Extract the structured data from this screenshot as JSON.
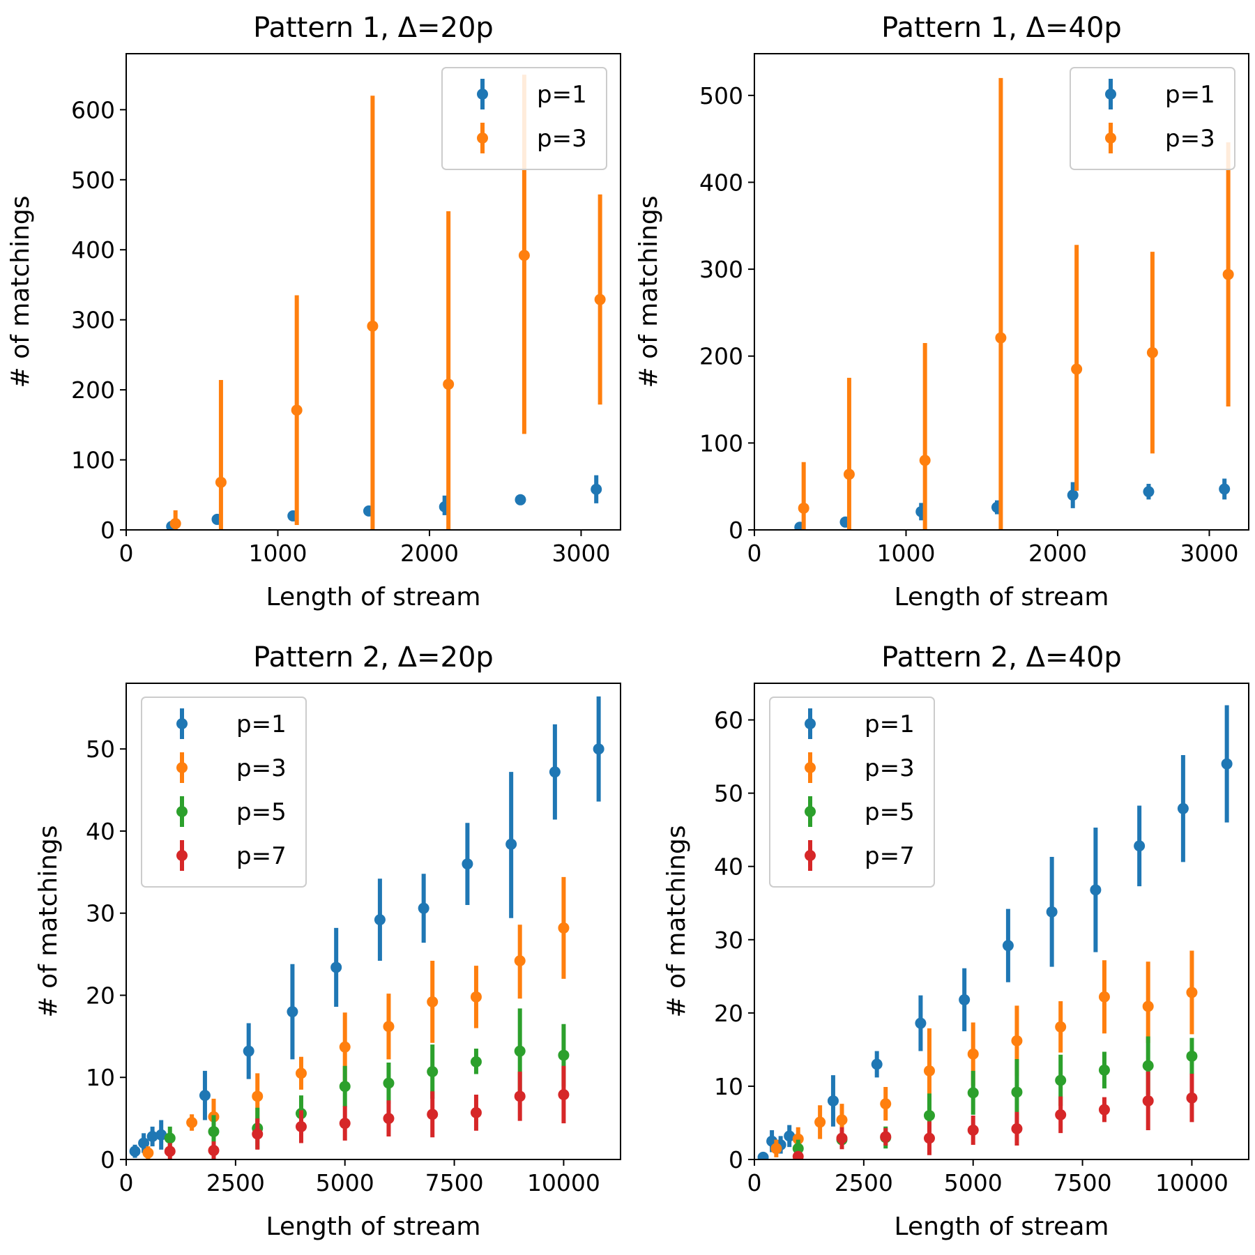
{
  "chart_data": [
    {
      "type": "scatter",
      "title": "Pattern 1, Δ=20p",
      "xlabel": "Length of stream",
      "ylabel": "# of matchings",
      "xlim": [
        0,
        3260
      ],
      "ylim": [
        0,
        680
      ],
      "xticks": [
        0,
        1000,
        2000,
        3000
      ],
      "xtick_labels": [
        "0",
        "1000",
        "2000",
        "3000"
      ],
      "yticks": [
        0,
        100,
        200,
        300,
        400,
        500,
        600
      ],
      "ytick_labels": [
        "0",
        "100",
        "200",
        "300",
        "400",
        "500",
        "600"
      ],
      "legend_position": "upper right",
      "series": [
        {
          "name": "p=1",
          "color": "#1f77b4",
          "x": [
            300,
            600,
            1100,
            1600,
            2100,
            2600,
            3100
          ],
          "y": [
            5,
            15,
            20,
            27,
            33,
            43,
            58
          ],
          "err_low": [
            0,
            6,
            6,
            5,
            12,
            5,
            20
          ],
          "err_high": [
            0,
            6,
            6,
            5,
            16,
            5,
            20
          ]
        },
        {
          "name": "p=3",
          "color": "#ff7f0e",
          "x": [
            325,
            625,
            1125,
            1625,
            2125,
            2625,
            3125
          ],
          "y": [
            9,
            68,
            171,
            291,
            208,
            392,
            329
          ],
          "err_low": [
            9,
            68,
            164,
            291,
            208,
            255,
            150
          ],
          "err_high": [
            19,
            146,
            164,
            329,
            247,
            258,
            150
          ]
        }
      ]
    },
    {
      "type": "scatter",
      "title": "Pattern 1, Δ=40p",
      "xlabel": "Length of stream",
      "ylabel": "# of matchings",
      "xlim": [
        0,
        3260
      ],
      "ylim": [
        0,
        548
      ],
      "xticks": [
        0,
        1000,
        2000,
        3000
      ],
      "xtick_labels": [
        "0",
        "1000",
        "2000",
        "3000"
      ],
      "yticks": [
        0,
        100,
        200,
        300,
        400,
        500
      ],
      "ytick_labels": [
        "0",
        "100",
        "200",
        "300",
        "400",
        "500"
      ],
      "legend_position": "upper right",
      "series": [
        {
          "name": "p=1",
          "color": "#1f77b4",
          "x": [
            300,
            600,
            1100,
            1600,
            2100,
            2600,
            3100
          ],
          "y": [
            3,
            9,
            21,
            26,
            40,
            44,
            47
          ],
          "err_low": [
            0,
            5,
            10,
            8,
            15,
            9,
            12
          ],
          "err_high": [
            0,
            5,
            10,
            8,
            15,
            9,
            12
          ]
        },
        {
          "name": "p=3",
          "color": "#ff7f0e",
          "x": [
            325,
            625,
            1125,
            1625,
            2125,
            2625,
            3125
          ],
          "y": [
            25,
            64,
            80,
            221,
            185,
            204,
            294
          ],
          "err_low": [
            25,
            64,
            80,
            221,
            140,
            116,
            152
          ],
          "err_high": [
            53,
            111,
            135,
            299,
            143,
            116,
            152
          ]
        }
      ]
    },
    {
      "type": "scatter",
      "title": "Pattern 2, Δ=20p",
      "xlabel": "Length of stream",
      "ylabel": "# of matchings",
      "xlim": [
        0,
        11300
      ],
      "ylim": [
        0,
        58
      ],
      "xticks": [
        0,
        2500,
        5000,
        7500,
        10000
      ],
      "xtick_labels": [
        "0",
        "2500",
        "5000",
        "7500",
        "10000"
      ],
      "yticks": [
        0,
        10,
        20,
        30,
        40,
        50
      ],
      "ytick_labels": [
        "0",
        "10",
        "20",
        "30",
        "40",
        "50"
      ],
      "legend_position": "upper left",
      "series": [
        {
          "name": "p=1",
          "color": "#1f77b4",
          "x": [
            200,
            400,
            600,
            800,
            1800,
            2800,
            3800,
            4800,
            5800,
            6800,
            7800,
            8800,
            9800,
            10800
          ],
          "y": [
            1,
            2,
            2.8,
            3,
            7.8,
            13.2,
            18,
            23.4,
            29.2,
            30.6,
            36,
            38.4,
            47.2,
            50
          ],
          "err_low": [
            0.8,
            1.2,
            1.2,
            1.8,
            3,
            3.4,
            5.8,
            4.8,
            5,
            4.2,
            5,
            9,
            5.8,
            6.4
          ],
          "err_high": [
            0.8,
            1.2,
            1.2,
            1.8,
            3,
            3.4,
            5.8,
            4.8,
            5,
            4.2,
            5,
            8.8,
            5.8,
            6.4
          ]
        },
        {
          "name": "p=3",
          "color": "#ff7f0e",
          "x": [
            500,
            1500,
            2000,
            3000,
            4000,
            5000,
            6000,
            7000,
            8000,
            9000,
            10000
          ],
          "y": [
            0.8,
            4.5,
            5.2,
            7.7,
            10.5,
            13.7,
            16.2,
            19.2,
            19.8,
            24.2,
            28.2
          ],
          "err_low": [
            0.8,
            1,
            2.2,
            4.5,
            2,
            4.2,
            4,
            5,
            3.8,
            4.6,
            6.2
          ],
          "err_high": [
            0.8,
            1,
            2.2,
            2.8,
            2,
            4.2,
            4,
            5,
            3.8,
            4.4,
            6.2
          ]
        },
        {
          "name": "p=5",
          "color": "#2ca02c",
          "x": [
            1000,
            2000,
            3000,
            4000,
            5000,
            6000,
            7000,
            8000,
            9000,
            10000
          ],
          "y": [
            2.6,
            3.4,
            3.8,
            5.6,
            8.9,
            9.3,
            10.7,
            11.9,
            13.2,
            12.7
          ],
          "err_low": [
            1.4,
            2,
            2.5,
            2.2,
            2.5,
            2.5,
            3.3,
            1.5,
            5.2,
            3.8
          ],
          "err_high": [
            1.4,
            2,
            2.5,
            2.2,
            2.5,
            2.5,
            3.3,
            1.6,
            5.2,
            3.8
          ]
        },
        {
          "name": "p=7",
          "color": "#d62728",
          "x": [
            1000,
            2000,
            3000,
            4000,
            5000,
            6000,
            7000,
            8000,
            9000,
            10000
          ],
          "y": [
            1,
            1.1,
            3.1,
            4,
            4.4,
            5,
            5.5,
            5.7,
            7.7,
            7.9
          ],
          "err_low": [
            1,
            1.1,
            1.9,
            2,
            2.1,
            2.2,
            2.8,
            2.2,
            3,
            3.5
          ],
          "err_high": [
            1,
            1.1,
            1.9,
            2,
            2.1,
            2.2,
            2.8,
            2.2,
            3,
            3.5
          ]
        }
      ]
    },
    {
      "type": "scatter",
      "title": "Pattern 2, Δ=40p",
      "xlabel": "Length of stream",
      "ylabel": "# of matchings",
      "xlim": [
        0,
        11300
      ],
      "ylim": [
        0,
        65
      ],
      "xticks": [
        0,
        2500,
        5000,
        7500,
        10000
      ],
      "xtick_labels": [
        "0",
        "2500",
        "5000",
        "7500",
        "10000"
      ],
      "yticks": [
        0,
        10,
        20,
        30,
        40,
        50,
        60
      ],
      "ytick_labels": [
        "0",
        "10",
        "20",
        "30",
        "40",
        "50",
        "60"
      ],
      "legend_position": "upper left",
      "series": [
        {
          "name": "p=1",
          "color": "#1f77b4",
          "x": [
            200,
            400,
            600,
            800,
            1800,
            2800,
            3800,
            4800,
            5800,
            6800,
            7800,
            8800,
            9800,
            10800
          ],
          "y": [
            0.3,
            2.5,
            2,
            3.2,
            8,
            13,
            18.6,
            21.8,
            29.2,
            33.8,
            36.8,
            42.8,
            47.9,
            54
          ],
          "err_low": [
            0.3,
            1.5,
            1.2,
            1.5,
            3.5,
            1.8,
            3.8,
            4.3,
            5,
            7.5,
            8.5,
            5.5,
            7.3,
            8
          ],
          "err_high": [
            0.3,
            1.5,
            1.2,
            1.5,
            3.5,
            1.8,
            3.8,
            4.3,
            5,
            7.5,
            8.5,
            5.5,
            7.3,
            8
          ]
        },
        {
          "name": "p=3",
          "color": "#ff7f0e",
          "x": [
            500,
            1000,
            1500,
            2000,
            3000,
            4000,
            5000,
            6000,
            7000,
            8000,
            9000,
            10000
          ],
          "y": [
            1.5,
            2.8,
            5.1,
            5.4,
            7.6,
            12.1,
            14.4,
            16.2,
            18.1,
            22.2,
            20.9,
            22.8
          ],
          "err_low": [
            1.2,
            1.6,
            2.3,
            2.2,
            2.3,
            5.8,
            4.3,
            4.8,
            3.5,
            5,
            5,
            5.7
          ],
          "err_high": [
            1.2,
            1.6,
            2.3,
            2.2,
            2.3,
            5.8,
            4.3,
            4.8,
            3.5,
            5,
            6.1,
            5.7
          ]
        },
        {
          "name": "p=5",
          "color": "#2ca02c",
          "x": [
            1000,
            2000,
            3000,
            4000,
            5000,
            6000,
            7000,
            8000,
            9000,
            10000
          ],
          "y": [
            1.5,
            2.7,
            3,
            6,
            9.1,
            9.2,
            10.8,
            12.2,
            12.8,
            14.1
          ],
          "err_low": [
            1.2,
            1.2,
            1.5,
            3,
            3,
            4.5,
            3.5,
            2.5,
            4,
            2.5
          ],
          "err_high": [
            1.2,
            1.2,
            1.5,
            3,
            3,
            4.5,
            3.5,
            2.5,
            4,
            2.5
          ]
        },
        {
          "name": "p=7",
          "color": "#d62728",
          "x": [
            1000,
            2000,
            3000,
            4000,
            5000,
            6000,
            7000,
            8000,
            9000,
            10000
          ],
          "y": [
            0.4,
            2.9,
            3.1,
            2.9,
            4,
            4.2,
            6.1,
            6.8,
            8,
            8.4
          ],
          "err_low": [
            0.4,
            1.5,
            1.2,
            2.3,
            2,
            2.3,
            2.5,
            1.7,
            4,
            3.3
          ],
          "err_high": [
            0.4,
            1.5,
            1.2,
            2.3,
            2,
            2.3,
            2.5,
            1.7,
            4,
            3.3
          ]
        }
      ]
    }
  ]
}
